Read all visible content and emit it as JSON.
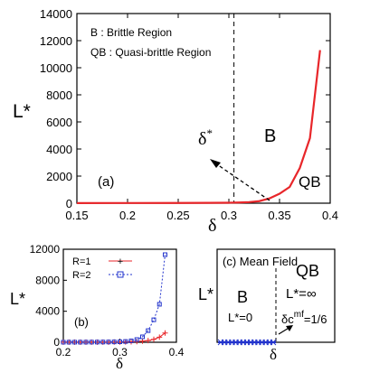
{
  "chart_data": [
    {
      "id": "a",
      "type": "line",
      "panel_label": "(a)",
      "xlabel": "δ",
      "ylabel": "L*",
      "xlim": [
        0.15,
        0.4
      ],
      "ylim": [
        0,
        14000
      ],
      "x_ticks": [
        "0.15",
        "0.2",
        "0.25",
        "0.3",
        "0.35",
        "0.4"
      ],
      "y_ticks": [
        "0",
        "2000",
        "4000",
        "6000",
        "8000",
        "10000",
        "12000",
        "14000"
      ],
      "legend_lines": [
        "B : Brittle Region",
        "QB : Quasi-brittle Region"
      ],
      "series": [
        {
          "color": "#e8262a",
          "x": [
            0.15,
            0.2,
            0.25,
            0.28,
            0.3,
            0.31,
            0.32,
            0.33,
            0.34,
            0.35,
            0.36,
            0.37,
            0.38,
            0.39
          ],
          "y": [
            10,
            12,
            18,
            25,
            35,
            50,
            80,
            150,
            350,
            700,
            1200,
            2600,
            4800,
            11300
          ]
        }
      ],
      "critical_line_x": 0.305,
      "annotations": {
        "critical": "δ*",
        "brittle": "B",
        "quasi_brittle": "QB"
      }
    },
    {
      "id": "b",
      "type": "line",
      "panel_label": "(b)",
      "xlabel": "δ",
      "ylabel": "L*",
      "xlim": [
        0.2,
        0.4
      ],
      "ylim": [
        0,
        12000
      ],
      "x_ticks": [
        "0.2",
        "0.3",
        "0.4"
      ],
      "y_ticks": [
        "0",
        "4000",
        "8000",
        "12000"
      ],
      "series": [
        {
          "name": "R=1",
          "color": "#e8262a",
          "marker": "plus",
          "x": [
            0.2,
            0.21,
            0.22,
            0.23,
            0.24,
            0.25,
            0.26,
            0.27,
            0.28,
            0.29,
            0.3,
            0.31,
            0.32,
            0.33,
            0.34,
            0.35,
            0.36,
            0.37,
            0.38
          ],
          "y": [
            10,
            10,
            10,
            10,
            12,
            12,
            15,
            15,
            20,
            25,
            30,
            40,
            60,
            90,
            140,
            220,
            380,
            650,
            1200
          ]
        },
        {
          "name": "R=2",
          "color": "#2233cc",
          "marker": "square",
          "x": [
            0.2,
            0.21,
            0.22,
            0.23,
            0.24,
            0.25,
            0.26,
            0.27,
            0.28,
            0.29,
            0.3,
            0.31,
            0.32,
            0.33,
            0.34,
            0.35,
            0.36,
            0.37,
            0.38
          ],
          "y": [
            10,
            10,
            12,
            12,
            15,
            18,
            22,
            28,
            35,
            45,
            60,
            100,
            180,
            350,
            700,
            1500,
            2900,
            4900,
            11300
          ]
        }
      ]
    },
    {
      "id": "c",
      "type": "line",
      "panel_label": "(c) Mean Field",
      "xlabel": "δ",
      "ylabel": "L*",
      "region_left": {
        "name": "B",
        "value": "L*=0"
      },
      "region_right": {
        "name": "QB",
        "value": "L*=∞",
        "critical": "δc",
        "critical_sup": "mf",
        "critical_value": "=1/6"
      },
      "points_count": 15
    }
  ]
}
